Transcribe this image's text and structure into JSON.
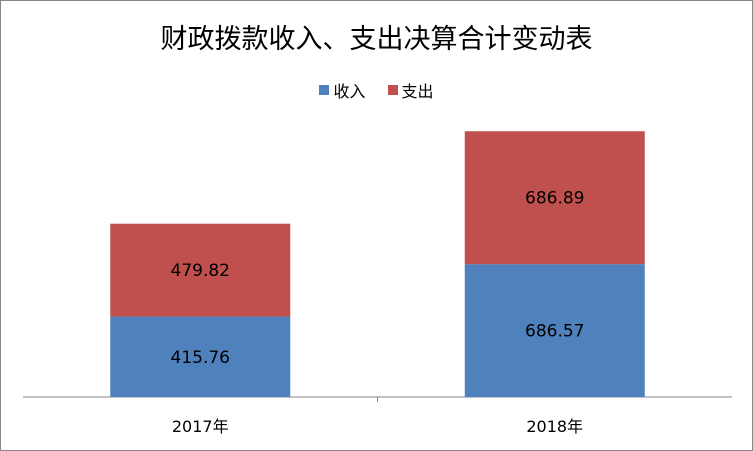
{
  "chart_data": {
    "type": "bar",
    "stacked": true,
    "title": "财政拨款收入、支出决算合计变动表",
    "categories": [
      "2017年",
      "2018年"
    ],
    "series": [
      {
        "name": "收入",
        "values": [
          415.76,
          686.57
        ],
        "color": "#4F81BD"
      },
      {
        "name": "支出",
        "values": [
          479.82,
          686.89
        ],
        "color": "#C0504D"
      }
    ],
    "legend": "top",
    "grid": false,
    "ylim": [
      0,
      1400
    ]
  }
}
